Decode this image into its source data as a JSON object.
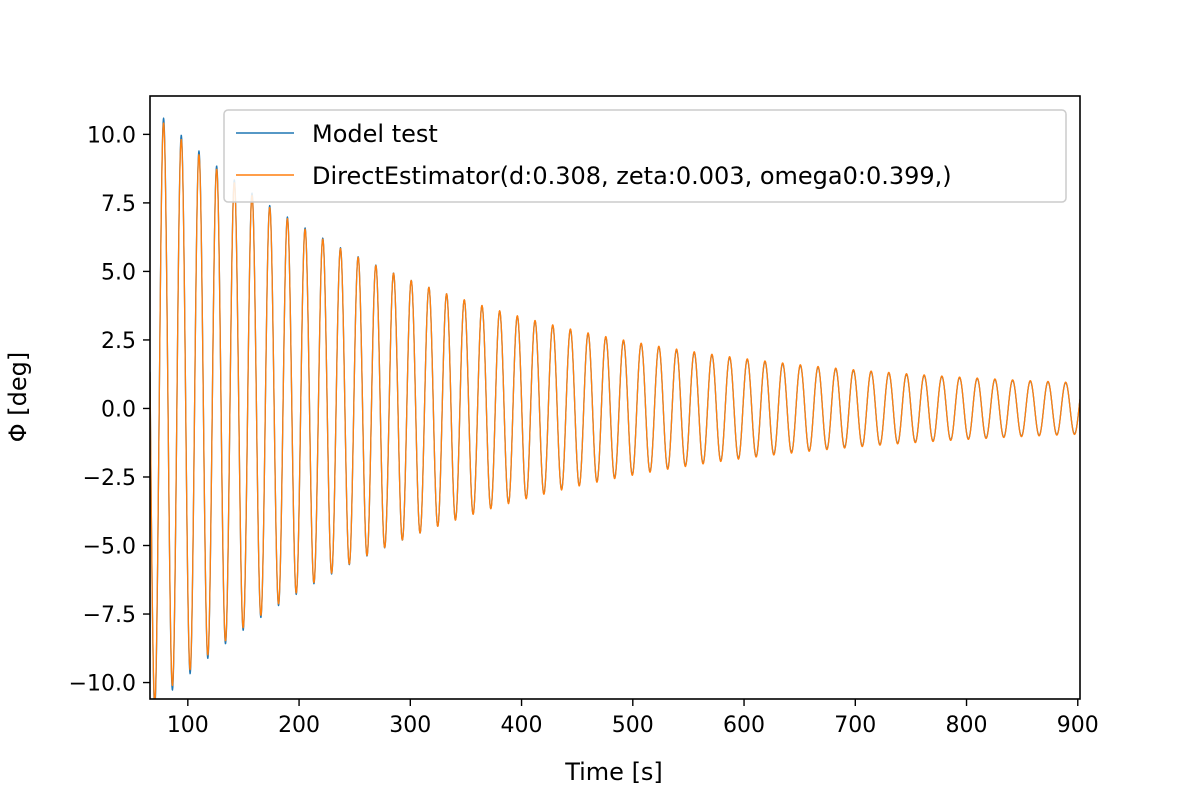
{
  "chart_data": {
    "type": "line",
    "xlabel": "Time [s]",
    "ylabel": "Φ [deg]",
    "xlim": [
      66,
      902
    ],
    "ylim": [
      -10.6,
      11.4
    ],
    "xticks": [
      100,
      200,
      300,
      400,
      500,
      600,
      700,
      800,
      900
    ],
    "yticks": [
      -10.0,
      -7.5,
      -5.0,
      -2.5,
      0.0,
      2.5,
      5.0,
      7.5,
      10.0
    ],
    "xtick_labels": [
      "100",
      "200",
      "300",
      "400",
      "500",
      "600",
      "700",
      "800",
      "900"
    ],
    "ytick_labels": [
      "−10.0",
      "−7.5",
      "−5.0",
      "−2.5",
      "0.0",
      "2.5",
      "5.0",
      "7.5",
      "10.0"
    ],
    "grid": false,
    "legend_position": "top-right",
    "series": [
      {
        "name": "Model test",
        "color": "#1f77b4",
        "curve": {
          "t0": 66,
          "t1": 902,
          "amplitude0": 11.1,
          "time_constant": 250,
          "floor_amplitude": 0.55,
          "period": 15.9,
          "phase_at_t0": 1.45
        }
      },
      {
        "name": "DirectEstimator(d:0.308, zeta:0.003, omega0:0.399,)",
        "color": "#ff7f0e",
        "curve": {
          "t0": 66,
          "t1": 902,
          "amplitude0": 10.9,
          "time_constant": 255,
          "floor_amplitude": 0.55,
          "period": 15.9,
          "phase_at_t0": 1.45
        }
      }
    ]
  }
}
